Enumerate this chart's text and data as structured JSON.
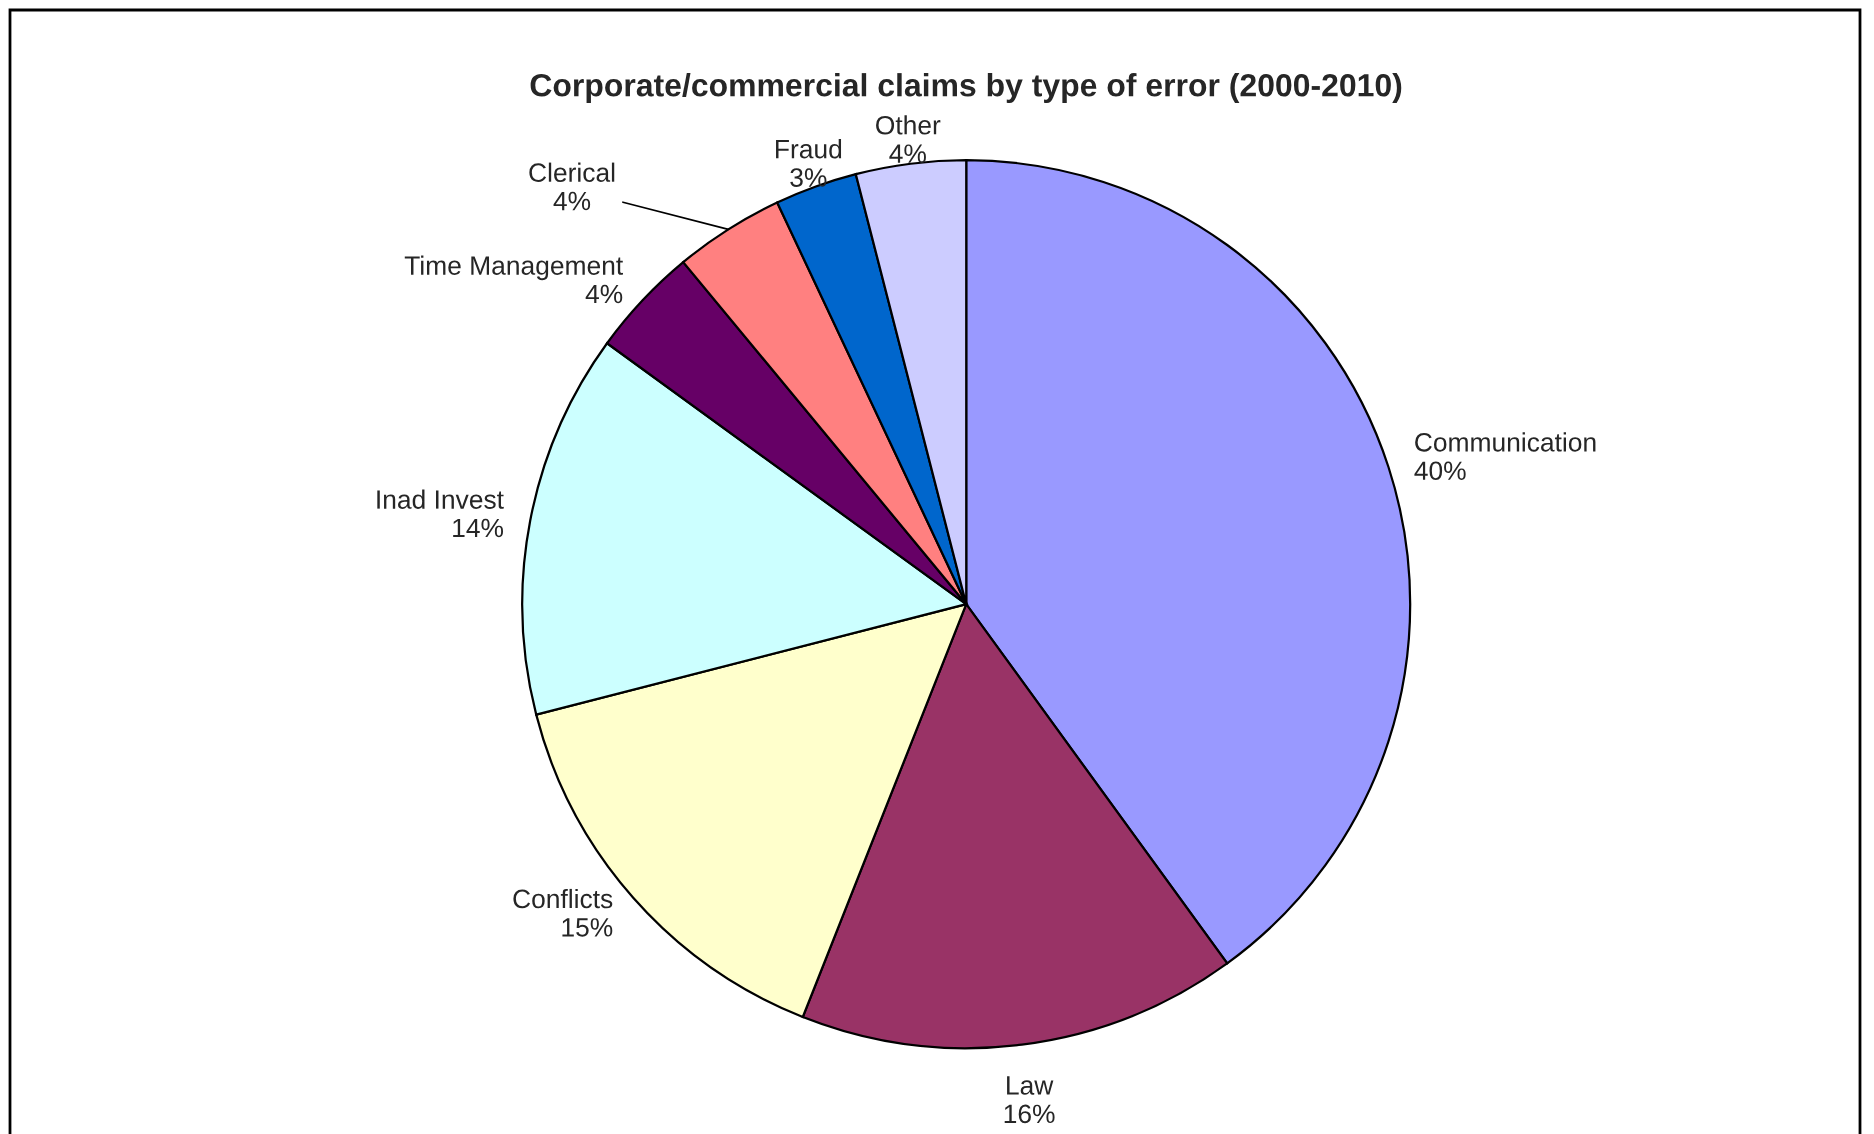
{
  "chart_data": {
    "type": "pie",
    "title": "Corporate/commercial claims by type of error (2000-2010)",
    "categories": [
      "Communication",
      "Law",
      "Conflicts",
      "Inad Invest",
      "Time Management",
      "Clerical",
      "Fraud",
      "Other"
    ],
    "values": [
      40,
      16,
      15,
      14,
      4,
      4,
      3,
      4
    ],
    "value_labels": [
      "40%",
      "16%",
      "15%",
      "14%",
      "4%",
      "4%",
      "3%",
      "4%"
    ],
    "colors": [
      "#9999ff",
      "#993366",
      "#ffffcc",
      "#ccffff",
      "#660066",
      "#ff8080",
      "#0066cc",
      "#ccccff"
    ]
  }
}
